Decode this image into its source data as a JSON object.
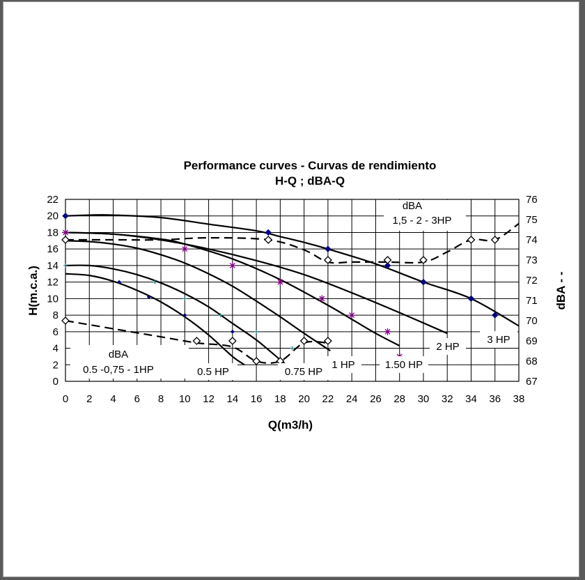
{
  "chart_data": {
    "type": "line",
    "title": "Performance curves - Curvas de rendimiento",
    "subtitle": "H-Q ; dBA-Q",
    "xlabel": "Q(m3/h)",
    "ylabel": "H(m.c.a.)",
    "y2label": "dBA - -",
    "xlim": [
      0,
      38
    ],
    "ylim": [
      0,
      22
    ],
    "y2lim": [
      67,
      76
    ],
    "x_ticks": [
      "0",
      "2",
      "4",
      "6",
      "8",
      "10",
      "12",
      "14",
      "16",
      "18",
      "20",
      "22",
      "24",
      "26",
      "28",
      "30",
      "32",
      "34",
      "36",
      "38"
    ],
    "y_ticks": [
      "0",
      "2",
      "4",
      "6",
      "8",
      "10",
      "12",
      "14",
      "16",
      "18",
      "20",
      "22"
    ],
    "y2_ticks": [
      "67",
      "68",
      "69",
      "70",
      "71",
      "72",
      "73",
      "74",
      "75",
      "76"
    ],
    "grid": true,
    "series": [
      {
        "name": "0.5 HP",
        "axis": "left",
        "style": "solid",
        "color": "#000000",
        "x": [
          0,
          2,
          4,
          6,
          8,
          10,
          12,
          14,
          15
        ],
        "y": [
          13,
          12.8,
          12.1,
          11,
          9.6,
          7.8,
          5.6,
          3.0,
          2.0
        ],
        "markers": {
          "symbol": "plus",
          "color": "#2e8b8b",
          "x": [
            0,
            4.5,
            7.5,
            10,
            13,
            16,
            19
          ],
          "y": [
            14,
            12,
            12,
            10,
            8,
            6,
            4
          ]
        }
      },
      {
        "name": "0.75 HP",
        "axis": "left",
        "style": "solid",
        "color": "#000000",
        "x": [
          0,
          2,
          4,
          6,
          8,
          10,
          12,
          14,
          16,
          18,
          18.5
        ],
        "y": [
          14,
          14,
          13.6,
          12.9,
          11.9,
          10.6,
          9.0,
          7.0,
          5.0,
          2.6,
          2.0
        ],
        "markers": {
          "symbol": "diamond-small",
          "color": "#000080",
          "x": [
            4.5,
            7,
            10,
            14
          ],
          "y": [
            12,
            10.2,
            8,
            6
          ]
        }
      },
      {
        "name": "1 HP",
        "axis": "left",
        "style": "solid",
        "color": "#000000",
        "x": [
          0,
          2,
          4,
          6,
          8,
          10,
          12,
          14,
          16,
          18,
          20,
          22.2
        ],
        "y": [
          17,
          16.9,
          16.6,
          16.1,
          15.3,
          14.3,
          13.0,
          11.5,
          9.7,
          7.8,
          5.8,
          3.7
        ]
      },
      {
        "name": "1.50 HP",
        "axis": "left",
        "style": "solid",
        "color": "#000000",
        "x": [
          0,
          4,
          8,
          10,
          14,
          18,
          22,
          24,
          26,
          28
        ],
        "y": [
          18,
          17.8,
          17.2,
          16.6,
          14.8,
          12.3,
          9.2,
          7.5,
          5.8,
          4.3
        ],
        "markers": {
          "symbol": "star",
          "color": "#800080",
          "x": [
            0,
            10,
            14,
            18,
            21.5,
            24,
            27,
            28
          ],
          "y": [
            18,
            16,
            14,
            12,
            10,
            8,
            6,
            3
          ]
        }
      },
      {
        "name": "2 HP",
        "axis": "left",
        "style": "solid",
        "color": "#000000",
        "x": [
          0,
          4,
          8,
          12,
          16,
          20,
          24,
          28,
          32
        ],
        "y": [
          18,
          17.8,
          17.1,
          16,
          14.6,
          12.9,
          10.7,
          8.3,
          5.8
        ]
      },
      {
        "name": "3 HP",
        "axis": "left",
        "style": "solid",
        "color": "#000000",
        "x": [
          0,
          2,
          4,
          8,
          12,
          16,
          18,
          20,
          22,
          26,
          30,
          34,
          38
        ],
        "y": [
          20,
          20.1,
          20.1,
          19.8,
          19.0,
          18.2,
          17.5,
          16.8,
          16.0,
          14.2,
          12.0,
          10.0,
          6.7
        ],
        "markers": {
          "symbol": "diamond-filled",
          "color": "#000080",
          "x": [
            0,
            17,
            22,
            27,
            30,
            34,
            36
          ],
          "y": [
            20,
            18,
            16,
            14,
            12,
            10,
            8
          ]
        }
      },
      {
        "name": "dBA 1,5 - 2 - 3HP",
        "axis": "right",
        "style": "dashed",
        "color": "#000000",
        "x": [
          0,
          4,
          8,
          12,
          17,
          20,
          22,
          24,
          27,
          30,
          32,
          34,
          36,
          38
        ],
        "y2": [
          74.0,
          74.0,
          74.0,
          74.1,
          74.0,
          73.5,
          72.9,
          72.9,
          72.9,
          72.9,
          73.4,
          74.0,
          74.0,
          74.8
        ],
        "markers": {
          "symbol": "diamond-open",
          "x": [
            0,
            17,
            22,
            27,
            30,
            34,
            36
          ],
          "y2": [
            74,
            74,
            73,
            73,
            73,
            74,
            74
          ]
        }
      },
      {
        "name": "dBA 0.5 -0,75 - 1HP",
        "axis": "right",
        "style": "dashed",
        "color": "#000000",
        "x": [
          0,
          5,
          8,
          11,
          14,
          16,
          18,
          20,
          22
        ],
        "y2": [
          70.0,
          69.5,
          69.2,
          68.9,
          68.7,
          68.0,
          68.0,
          68.9,
          68.9
        ],
        "markers": {
          "symbol": "diamond-open",
          "x": [
            0,
            11,
            14,
            16,
            18,
            20,
            22
          ],
          "y2": [
            70,
            69,
            69,
            68,
            68,
            69,
            69
          ]
        }
      }
    ],
    "annotations": {
      "dba_high_title": "dBA",
      "dba_high_sub": "1,5 - 2 - 3HP",
      "dba_low_title": "dBA",
      "dba_low_sub": "0.5 -0,75 - 1HP",
      "lbl_05": "0.5 HP",
      "lbl_075": "0.75 HP",
      "lbl_1": "1 HP",
      "lbl_150": "1.50 HP",
      "lbl_2": "2 HP",
      "lbl_3": "3 HP"
    }
  }
}
